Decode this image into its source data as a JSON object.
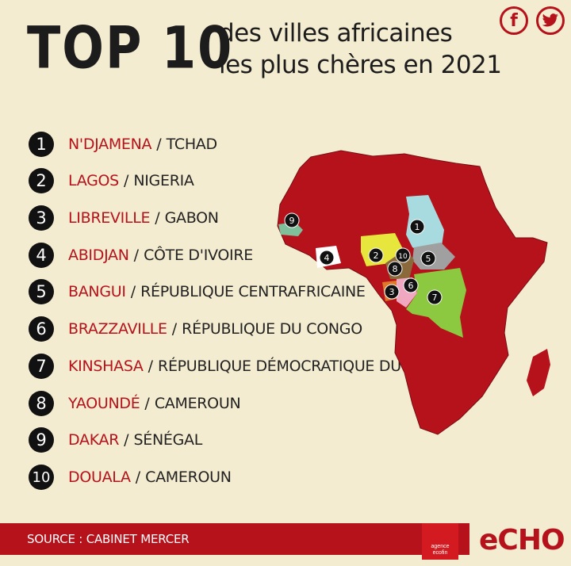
{
  "header": {
    "title_big": "TOP 10",
    "title_line1": "des villes africaines",
    "title_line2": "les plus chères en 2021"
  },
  "social": [
    {
      "name": "facebook-icon",
      "glyph": "f"
    },
    {
      "name": "twitter-icon"
    }
  ],
  "ranking": [
    {
      "rank": "1",
      "city": "N'DJAMENA",
      "country": "TCHAD"
    },
    {
      "rank": "2",
      "city": "LAGOS",
      "country": "NIGERIA"
    },
    {
      "rank": "3",
      "city": "LIBREVILLE",
      "country": "GABON"
    },
    {
      "rank": "4",
      "city": "ABIDJAN",
      "country": "CÔTE D'IVOIRE"
    },
    {
      "rank": "5",
      "city": "BANGUI",
      "country": "RÉPUBLIQUE CENTRAFRICAINE"
    },
    {
      "rank": "6",
      "city": "BRAZZAVILLE",
      "country": "RÉPUBLIQUE DU CONGO"
    },
    {
      "rank": "7",
      "city": "KINSHASA",
      "country": "RÉPUBLIQUE DÉMOCRATIQUE DU CONGO"
    },
    {
      "rank": "8",
      "city": "YAOUNDÉ",
      "country": "CAMEROUN"
    },
    {
      "rank": "9",
      "city": "DAKAR",
      "country": "SÉNÉGAL"
    },
    {
      "rank": "10",
      "city": "DOUALA",
      "country": "CAMEROUN"
    }
  ],
  "separator": "/",
  "map_markers": [
    "1",
    "2",
    "3",
    "4",
    "5",
    "6",
    "7",
    "8",
    "9",
    "10"
  ],
  "footer": {
    "source": "SOURCE : CABINET MERCER",
    "ecofin_line1": "agence",
    "ecofin_line2": "ecofin",
    "echo": "eCHO"
  },
  "colors": {
    "accent": "#b5121b",
    "background": "#f4ecd0",
    "tchad": "#a8dbe0",
    "nigeria": "#e6e63c",
    "cameroun": "#8a6a3a",
    "gabon": "#e0782a",
    "rca": "#a0a0a0",
    "congo": "#f0a8c0",
    "rdc": "#8cc840",
    "senegal": "#7fbf9a",
    "cote_ivoire": "#ffffff"
  }
}
